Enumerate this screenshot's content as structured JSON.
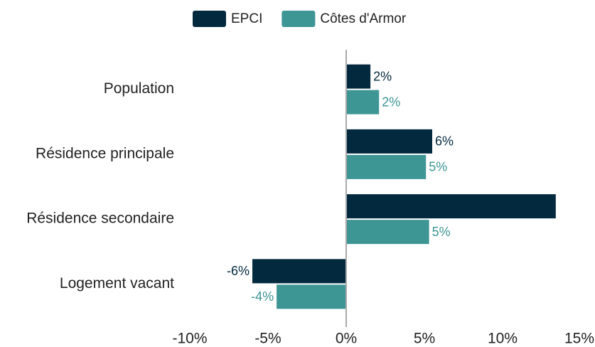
{
  "chart_data": {
    "type": "hbar",
    "categories": [
      "Population",
      "Résidence principale",
      "Résidence secondaire",
      "Logement vacant"
    ],
    "series": [
      {
        "name": "EPCI",
        "color": "#03293f",
        "values": [
          1.55,
          5.5,
          13.4,
          -6.0
        ],
        "value_labels": [
          "2%",
          "6%",
          null,
          "-6%"
        ]
      },
      {
        "name": "Côtes d'Armor",
        "color": "#3d9594",
        "values": [
          2.1,
          5.1,
          5.3,
          -4.45
        ],
        "value_labels": [
          "2%",
          "5%",
          "5%",
          "-4%"
        ]
      }
    ],
    "xlim": [
      -10,
      15
    ],
    "xticks": [
      {
        "value": -10,
        "label": "-10%"
      },
      {
        "value": -5,
        "label": "-5%"
      },
      {
        "value": 0,
        "label": "0%"
      },
      {
        "value": 5,
        "label": "5%"
      },
      {
        "value": 10,
        "label": "10%"
      },
      {
        "value": 15,
        "label": "15%"
      }
    ],
    "legend": "top"
  }
}
